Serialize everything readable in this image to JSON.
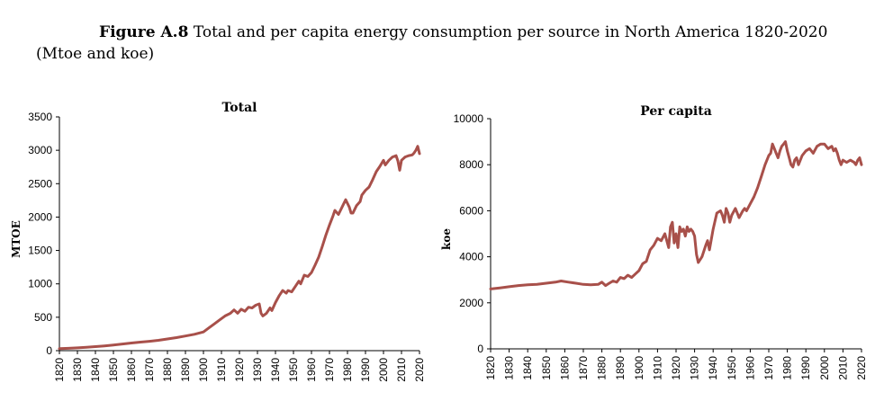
{
  "figure": {
    "label": "Figure A.8",
    "caption": "Total and per capita energy consumption per source in North America 1820-2020",
    "units": "(Mtoe and koe)"
  },
  "chart_data": [
    {
      "type": "line",
      "title": "Total",
      "xlabel": "",
      "ylabel": "MTOE",
      "xlim": [
        1820,
        2020
      ],
      "ylim": [
        0,
        3500
      ],
      "yticks": [
        0,
        500,
        1000,
        1500,
        2000,
        2500,
        3000,
        3500
      ],
      "xticks": [
        1820,
        1830,
        1840,
        1850,
        1860,
        1870,
        1880,
        1890,
        1900,
        1910,
        1920,
        1930,
        1940,
        1950,
        1960,
        1970,
        1980,
        1990,
        2000,
        2010,
        2020
      ],
      "grid": false,
      "color": "#a8504a",
      "series": [
        {
          "name": "Total",
          "x": [
            1820,
            1825,
            1830,
            1835,
            1840,
            1845,
            1850,
            1855,
            1860,
            1865,
            1870,
            1875,
            1880,
            1885,
            1890,
            1895,
            1900,
            1903,
            1906,
            1909,
            1912,
            1915,
            1917,
            1919,
            1921,
            1923,
            1925,
            1927,
            1929,
            1931,
            1932,
            1933,
            1935,
            1937,
            1938,
            1940,
            1942,
            1944,
            1946,
            1947,
            1949,
            1951,
            1953,
            1954,
            1956,
            1958,
            1960,
            1962,
            1964,
            1966,
            1968,
            1970,
            1972,
            1973,
            1975,
            1977,
            1979,
            1981,
            1982,
            1983,
            1985,
            1987,
            1988,
            1990,
            1992,
            1994,
            1996,
            1998,
            2000,
            2001,
            2003,
            2005,
            2007,
            2008,
            2009,
            2010,
            2012,
            2014,
            2016,
            2017,
            2018,
            2019,
            2020
          ],
          "values": [
            30,
            35,
            42,
            50,
            60,
            72,
            85,
            100,
            115,
            128,
            140,
            155,
            175,
            195,
            220,
            245,
            280,
            340,
            400,
            460,
            520,
            560,
            610,
            560,
            620,
            590,
            650,
            640,
            680,
            700,
            560,
            520,
            560,
            640,
            600,
            720,
            820,
            900,
            860,
            900,
            880,
            960,
            1040,
            1000,
            1130,
            1110,
            1170,
            1280,
            1400,
            1560,
            1730,
            1880,
            2020,
            2100,
            2040,
            2150,
            2260,
            2150,
            2060,
            2060,
            2170,
            2230,
            2330,
            2400,
            2450,
            2560,
            2680,
            2760,
            2850,
            2780,
            2850,
            2900,
            2920,
            2840,
            2700,
            2850,
            2900,
            2920,
            2930,
            2960,
            3000,
            3060,
            2950
          ]
        }
      ]
    },
    {
      "type": "line",
      "title": "Per capita",
      "xlabel": "",
      "ylabel": "koe",
      "xlim": [
        1820,
        2020
      ],
      "ylim": [
        0,
        10000
      ],
      "yticks": [
        0,
        2000,
        4000,
        6000,
        8000,
        10000
      ],
      "xticks": [
        1820,
        1830,
        1840,
        1850,
        1860,
        1870,
        1880,
        1890,
        1900,
        1910,
        1920,
        1930,
        1940,
        1950,
        1960,
        1970,
        1980,
        1990,
        2000,
        2010,
        2020
      ],
      "grid": false,
      "color": "#a8504a",
      "series": [
        {
          "name": "Per capita",
          "x": [
            1820,
            1825,
            1830,
            1835,
            1840,
            1845,
            1850,
            1855,
            1858,
            1862,
            1866,
            1870,
            1874,
            1878,
            1880,
            1882,
            1884,
            1886,
            1888,
            1890,
            1892,
            1894,
            1896,
            1898,
            1900,
            1902,
            1904,
            1906,
            1908,
            1910,
            1912,
            1914,
            1916,
            1917,
            1918,
            1919,
            1920,
            1921,
            1922,
            1923,
            1924,
            1925,
            1926,
            1927,
            1928,
            1929,
            1930,
            1931,
            1932,
            1934,
            1936,
            1937,
            1938,
            1940,
            1942,
            1944,
            1945,
            1946,
            1947,
            1948,
            1949,
            1950,
            1952,
            1953,
            1954,
            1956,
            1957,
            1958,
            1960,
            1962,
            1964,
            1966,
            1968,
            1970,
            1971,
            1972,
            1973,
            1974,
            1975,
            1976,
            1977,
            1978,
            1979,
            1980,
            1981,
            1982,
            1983,
            1984,
            1985,
            1986,
            1988,
            1990,
            1992,
            1994,
            1996,
            1998,
            2000,
            2002,
            2004,
            2005,
            2006,
            2007,
            2008,
            2009,
            2010,
            2012,
            2014,
            2016,
            2017,
            2018,
            2019,
            2020
          ],
          "values": [
            2600,
            2650,
            2700,
            2750,
            2780,
            2800,
            2850,
            2900,
            2950,
            2900,
            2850,
            2800,
            2780,
            2800,
            2900,
            2750,
            2850,
            2950,
            2900,
            3100,
            3050,
            3200,
            3100,
            3250,
            3400,
            3700,
            3800,
            4300,
            4500,
            4800,
            4700,
            5000,
            4400,
            5300,
            5500,
            4600,
            5000,
            4400,
            5300,
            5100,
            5200,
            4900,
            5300,
            5100,
            5200,
            5100,
            4900,
            4100,
            3750,
            4000,
            4500,
            4700,
            4300,
            5200,
            5900,
            6000,
            5800,
            5500,
            6100,
            5900,
            5500,
            5800,
            6100,
            5900,
            5700,
            6000,
            6100,
            6000,
            6300,
            6600,
            7000,
            7500,
            8000,
            8400,
            8500,
            8900,
            8700,
            8500,
            8300,
            8600,
            8800,
            8900,
            9000,
            8600,
            8300,
            8000,
            7900,
            8200,
            8300,
            8000,
            8400,
            8600,
            8700,
            8500,
            8800,
            8900,
            8900,
            8700,
            8800,
            8600,
            8700,
            8500,
            8200,
            8000,
            8200,
            8100,
            8200,
            8100,
            8000,
            8200,
            8300,
            8000
          ]
        }
      ]
    }
  ]
}
